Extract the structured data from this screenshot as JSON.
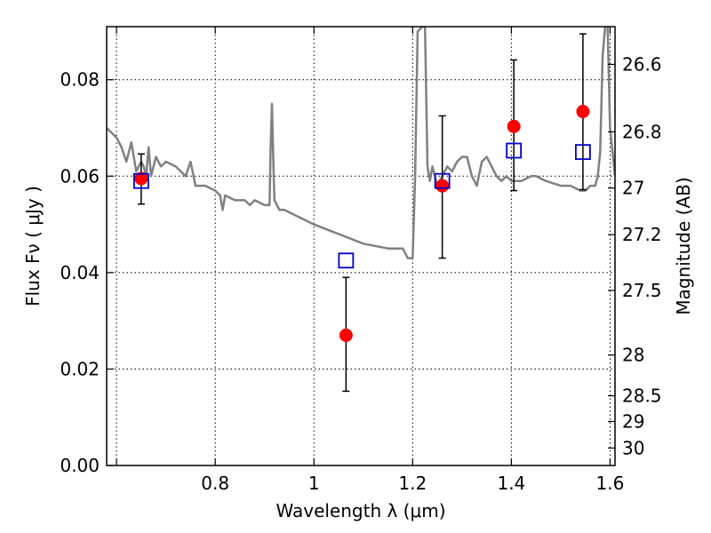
{
  "chart_data": {
    "type": "scatter",
    "xlabel": "Wavelength  λ (μm)",
    "ylabel": "Flux  Fν  ( μJy )",
    "y2label": "Magnitude (AB)",
    "xlim": [
      0.58,
      1.61
    ],
    "ylim": [
      0.0,
      0.091
    ],
    "grid": true,
    "x_ticks": [
      {
        "value": 0.6,
        "label": ""
      },
      {
        "value": 0.8,
        "label": "0.8"
      },
      {
        "value": 1.0,
        "label": "1"
      },
      {
        "value": 1.2,
        "label": "1.2"
      },
      {
        "value": 1.4,
        "label": "1.4"
      },
      {
        "value": 1.6,
        "label": "1.6"
      }
    ],
    "y_ticks": [
      {
        "value": 0.0,
        "label": "0.00"
      },
      {
        "value": 0.02,
        "label": "0.02"
      },
      {
        "value": 0.04,
        "label": "0.04"
      },
      {
        "value": 0.06,
        "label": "0.06"
      },
      {
        "value": 0.08,
        "label": "0.08"
      }
    ],
    "y2_ticks": [
      {
        "mag": 26.6,
        "label": "26.6"
      },
      {
        "mag": 26.8,
        "label": "26.8"
      },
      {
        "mag": 27.0,
        "label": "27"
      },
      {
        "mag": 27.2,
        "label": "27.2"
      },
      {
        "mag": 27.5,
        "label": "27.5"
      },
      {
        "mag": 28.0,
        "label": "28"
      },
      {
        "mag": 28.5,
        "label": "28.5"
      },
      {
        "mag": 29.0,
        "label": "29"
      },
      {
        "mag": 30.0,
        "label": "30"
      }
    ],
    "colors": {
      "model_line": "#808080",
      "observed": "#ff0000",
      "model_points": "#0000cc",
      "errorbar": "#000000",
      "grid": "#000000"
    },
    "series": [
      {
        "type": "line",
        "x": [
          0.58,
          0.6,
          0.61,
          0.62,
          0.63,
          0.64,
          0.65,
          0.655,
          0.66,
          0.665,
          0.67,
          0.68,
          0.69,
          0.7,
          0.72,
          0.74,
          0.75,
          0.76,
          0.78,
          0.8,
          0.81,
          0.815,
          0.82,
          0.84,
          0.86,
          0.87,
          0.88,
          0.9,
          0.91,
          0.912,
          0.915,
          0.918,
          0.92,
          0.93,
          0.94,
          0.96,
          1.0,
          1.05,
          1.1,
          1.15,
          1.18,
          1.19,
          1.2,
          1.205,
          1.21,
          1.22,
          1.225,
          1.23,
          1.235,
          1.24,
          1.25,
          1.26,
          1.27,
          1.28,
          1.29,
          1.3,
          1.31,
          1.32,
          1.33,
          1.34,
          1.35,
          1.36,
          1.37,
          1.38,
          1.39,
          1.4,
          1.42,
          1.44,
          1.45,
          1.47,
          1.5,
          1.52,
          1.54,
          1.55,
          1.56,
          1.57,
          1.575,
          1.58,
          1.585,
          1.59,
          1.595,
          1.6,
          1.61
        ],
        "y": [
          0.07,
          0.068,
          0.066,
          0.063,
          0.067,
          0.061,
          0.063,
          0.062,
          0.06,
          0.066,
          0.06,
          0.064,
          0.062,
          0.063,
          0.062,
          0.06,
          0.063,
          0.058,
          0.058,
          0.057,
          0.056,
          0.053,
          0.056,
          0.055,
          0.055,
          0.054,
          0.055,
          0.054,
          0.054,
          0.065,
          0.075,
          0.062,
          0.055,
          0.053,
          0.053,
          0.052,
          0.05,
          0.048,
          0.046,
          0.045,
          0.045,
          0.043,
          0.043,
          0.06,
          0.09,
          0.091,
          0.091,
          0.062,
          0.059,
          0.062,
          0.058,
          0.06,
          0.062,
          0.061,
          0.063,
          0.064,
          0.064,
          0.06,
          0.058,
          0.063,
          0.064,
          0.062,
          0.06,
          0.059,
          0.06,
          0.059,
          0.059,
          0.06,
          0.06,
          0.059,
          0.058,
          0.058,
          0.057,
          0.057,
          0.058,
          0.058,
          0.06,
          0.065,
          0.085,
          0.091,
          0.091,
          0.07,
          0.06
        ]
      },
      {
        "type": "scatter",
        "marker": "circle",
        "x": [
          0.65,
          1.065,
          1.26,
          1.405,
          1.545
        ],
        "y": [
          0.0595,
          0.027,
          0.058,
          0.0703,
          0.0734
        ],
        "yerr_low": [
          0.0053,
          0.0116,
          0.015,
          0.0133,
          0.0162
        ],
        "yerr_high": [
          0.0051,
          0.012,
          0.0145,
          0.0138,
          0.0161
        ]
      },
      {
        "type": "scatter",
        "marker": "square-open",
        "x": [
          0.65,
          1.065,
          1.26,
          1.405,
          1.545
        ],
        "y": [
          0.059,
          0.0425,
          0.059,
          0.0653,
          0.065
        ]
      }
    ]
  }
}
